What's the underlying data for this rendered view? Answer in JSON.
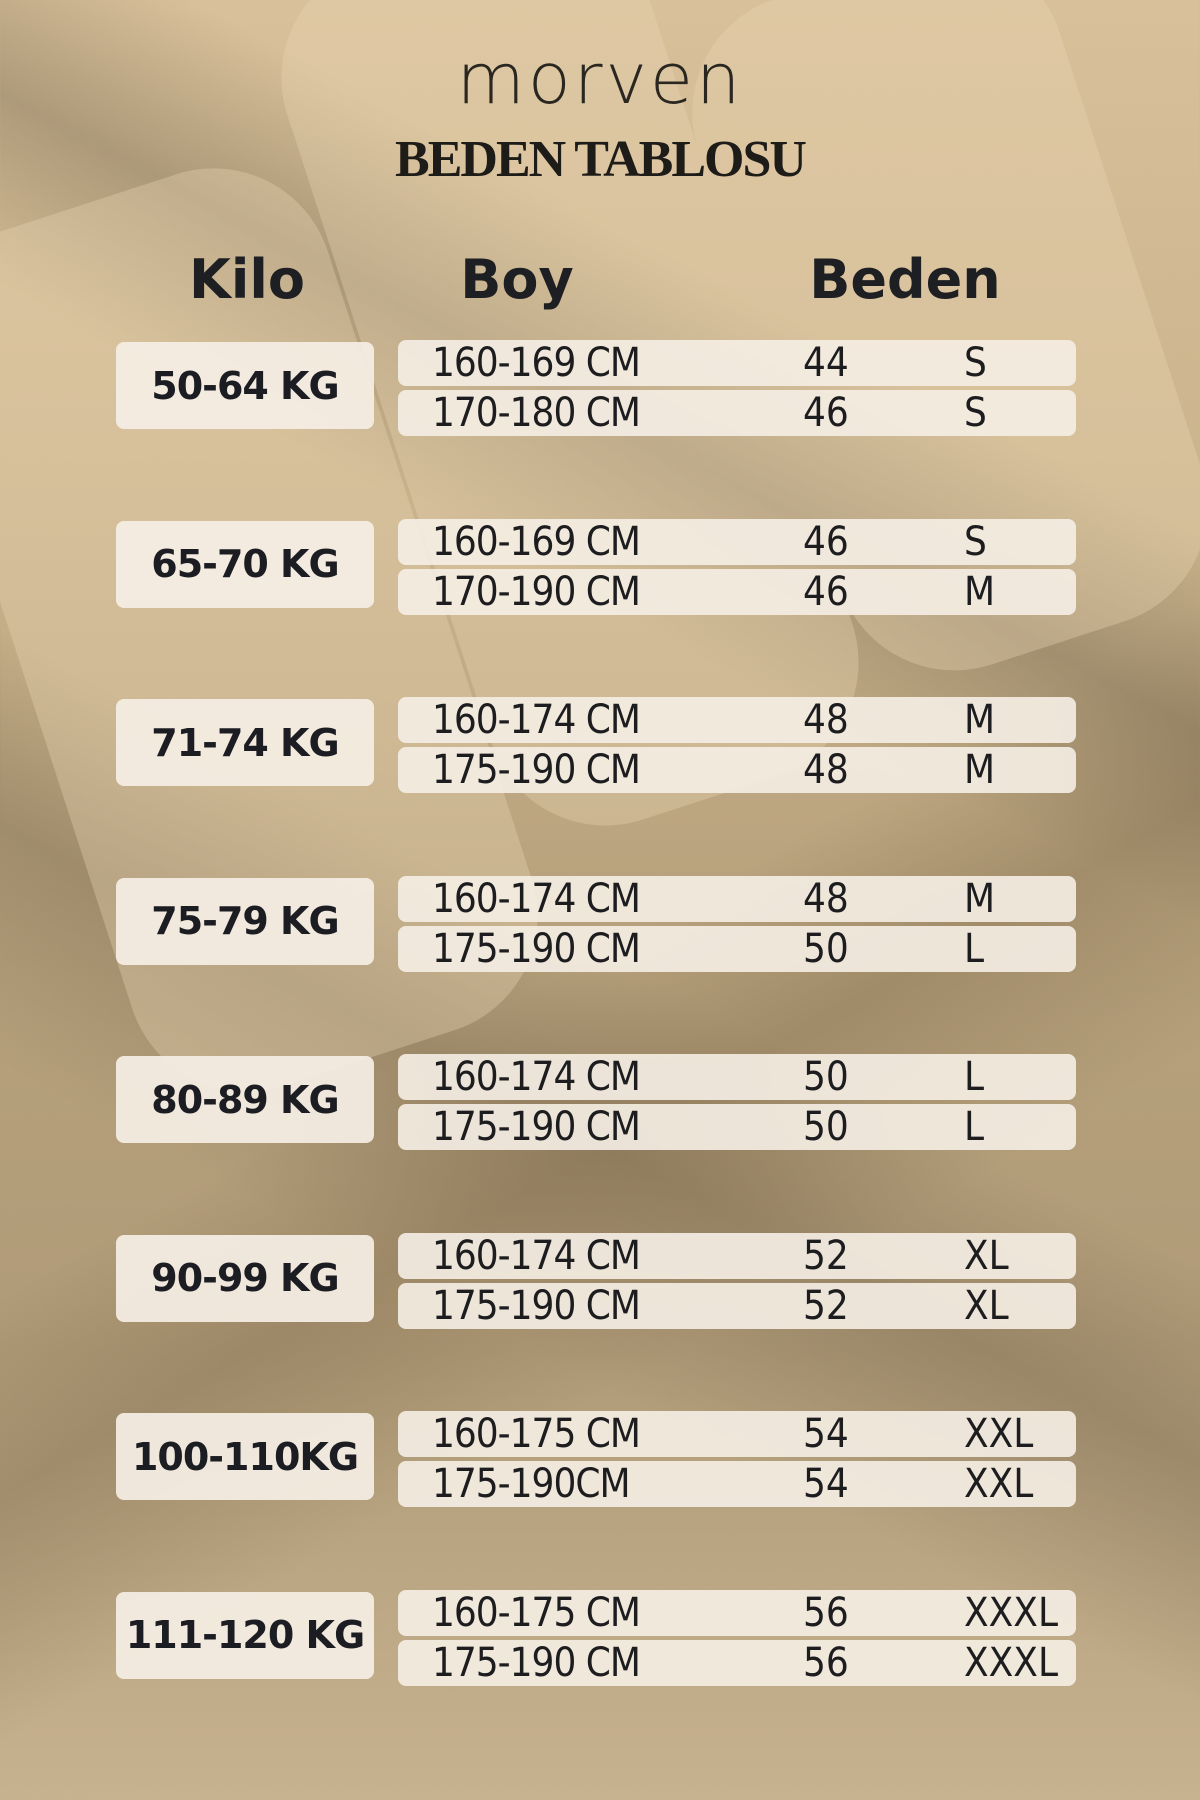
{
  "brand": "morven",
  "title": "BEDEN TABLOSU",
  "headers": {
    "kilo": "Kilo",
    "boy": "Boy",
    "beden": "Beden"
  },
  "groups": [
    {
      "kilo": "50-64 KG",
      "rows": [
        {
          "boy": "160-169 CM",
          "num": "44",
          "size": "S"
        },
        {
          "boy": "170-180 CM",
          "num": "46",
          "size": "S"
        }
      ]
    },
    {
      "kilo": "65-70 KG",
      "rows": [
        {
          "boy": "160-169 CM",
          "num": "46",
          "size": "S"
        },
        {
          "boy": "170-190 CM",
          "num": "46",
          "size": "M"
        }
      ]
    },
    {
      "kilo": "71-74 KG",
      "rows": [
        {
          "boy": "160-174 CM",
          "num": "48",
          "size": "M"
        },
        {
          "boy": "175-190 CM",
          "num": "48",
          "size": "M"
        }
      ]
    },
    {
      "kilo": "75-79 KG",
      "rows": [
        {
          "boy": "160-174 CM",
          "num": "48",
          "size": "M"
        },
        {
          "boy": "175-190 CM",
          "num": "50",
          "size": "L"
        }
      ]
    },
    {
      "kilo": "80-89 KG",
      "rows": [
        {
          "boy": "160-174 CM",
          "num": "50",
          "size": "L"
        },
        {
          "boy": "175-190 CM",
          "num": "50",
          "size": "L"
        }
      ]
    },
    {
      "kilo": "90-99 KG",
      "rows": [
        {
          "boy": "160-174 CM",
          "num": "52",
          "size": "XL"
        },
        {
          "boy": "175-190 CM",
          "num": "52",
          "size": "XL"
        }
      ]
    },
    {
      "kilo": "100-110KG",
      "rows": [
        {
          "boy": "160-175 CM",
          "num": "54",
          "size": "XXL"
        },
        {
          "boy": "175-190CM",
          "num": "54",
          "size": "XXL"
        }
      ]
    },
    {
      "kilo": "111-120 KG",
      "rows": [
        {
          "boy": "160-175 CM",
          "num": "56",
          "size": "XXXL"
        },
        {
          "boy": "175-190 CM",
          "num": "56",
          "size": "XXXL"
        }
      ]
    }
  ]
}
